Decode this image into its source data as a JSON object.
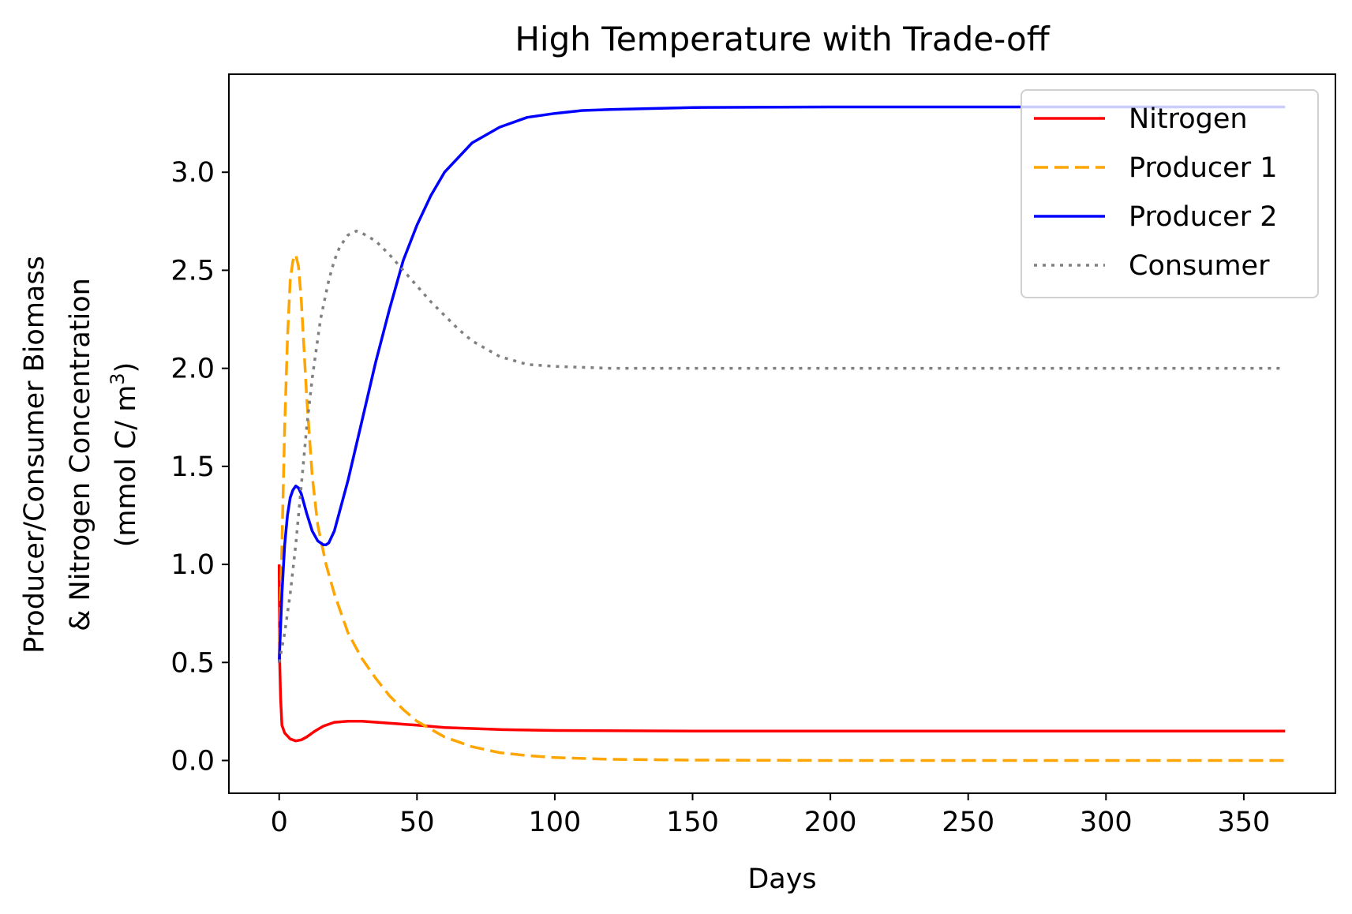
{
  "chart_data": {
    "type": "line",
    "title": "High Temperature with Trade-off",
    "xlabel": "Days",
    "ylabel_lines": [
      "Producer/Consumer Biomass",
      "& Nitrogen Concentration",
      "(mmol C/ m",
      "3",
      ")"
    ],
    "xlim": [
      -18.25,
      383.25
    ],
    "ylim": [
      -0.167,
      3.5
    ],
    "xticks": [
      0,
      50,
      100,
      150,
      200,
      250,
      300,
      350
    ],
    "yticks": [
      0.0,
      0.5,
      1.0,
      1.5,
      2.0,
      2.5,
      3.0
    ],
    "ytick_labels": [
      "0.0",
      "0.5",
      "1.0",
      "1.5",
      "2.0",
      "2.5",
      "3.0"
    ],
    "legend_position": "top-right",
    "grid": false,
    "series": [
      {
        "name": "Nitrogen",
        "color": "#ff0000",
        "style": "solid",
        "x": [
          0,
          0.2,
          0.5,
          1,
          2,
          4,
          6,
          8,
          10,
          13,
          16,
          20,
          25,
          30,
          40,
          50,
          60,
          80,
          100,
          150,
          200,
          250,
          300,
          365
        ],
        "y": [
          1.0,
          0.5,
          0.32,
          0.18,
          0.14,
          0.11,
          0.1,
          0.105,
          0.12,
          0.15,
          0.175,
          0.195,
          0.2,
          0.2,
          0.19,
          0.18,
          0.168,
          0.158,
          0.153,
          0.15,
          0.15,
          0.15,
          0.15,
          0.15
        ]
      },
      {
        "name": "Producer 1",
        "color": "#ffa500",
        "style": "dashed",
        "x": [
          0,
          1,
          2,
          3,
          4,
          5,
          6,
          7,
          8,
          9,
          10,
          12,
          14,
          17,
          20,
          25,
          30,
          35,
          40,
          45,
          50,
          55,
          60,
          70,
          80,
          90,
          100,
          120,
          150,
          200,
          250,
          300,
          365
        ],
        "y": [
          0.5,
          1.1,
          1.7,
          2.15,
          2.45,
          2.55,
          2.58,
          2.52,
          2.35,
          2.1,
          1.85,
          1.45,
          1.2,
          1.0,
          0.85,
          0.65,
          0.52,
          0.42,
          0.33,
          0.26,
          0.2,
          0.16,
          0.12,
          0.07,
          0.04,
          0.025,
          0.015,
          0.006,
          0.002,
          0.0,
          0.0,
          0.0,
          0.0
        ]
      },
      {
        "name": "Producer 2",
        "color": "#0000ff",
        "style": "solid",
        "x": [
          0,
          1,
          2,
          3,
          4,
          5,
          6,
          7,
          8,
          9,
          10,
          12,
          14,
          16,
          17,
          18,
          20,
          25,
          30,
          35,
          40,
          45,
          50,
          55,
          60,
          70,
          80,
          90,
          100,
          110,
          120,
          150,
          200,
          250,
          300,
          365
        ],
        "y": [
          0.5,
          0.85,
          1.1,
          1.25,
          1.34,
          1.38,
          1.4,
          1.39,
          1.36,
          1.31,
          1.26,
          1.17,
          1.12,
          1.1,
          1.1,
          1.11,
          1.17,
          1.43,
          1.73,
          2.03,
          2.3,
          2.55,
          2.73,
          2.88,
          3.0,
          3.15,
          3.23,
          3.28,
          3.3,
          3.315,
          3.32,
          3.33,
          3.333,
          3.333,
          3.333,
          3.333
        ]
      },
      {
        "name": "Consumer",
        "color": "#808080",
        "style": "dotted",
        "x": [
          0,
          2,
          4,
          6,
          8,
          10,
          12,
          15,
          18,
          20,
          22,
          25,
          28,
          30,
          35,
          40,
          45,
          50,
          55,
          60,
          65,
          70,
          80,
          90,
          100,
          120,
          150,
          200,
          250,
          300,
          365
        ],
        "y": [
          0.5,
          0.65,
          0.85,
          1.1,
          1.4,
          1.7,
          1.95,
          2.25,
          2.45,
          2.55,
          2.62,
          2.68,
          2.7,
          2.69,
          2.65,
          2.58,
          2.5,
          2.42,
          2.34,
          2.27,
          2.2,
          2.14,
          2.06,
          2.02,
          2.01,
          2.0,
          2.0,
          2.0,
          2.0,
          2.0,
          2.0
        ]
      }
    ]
  }
}
